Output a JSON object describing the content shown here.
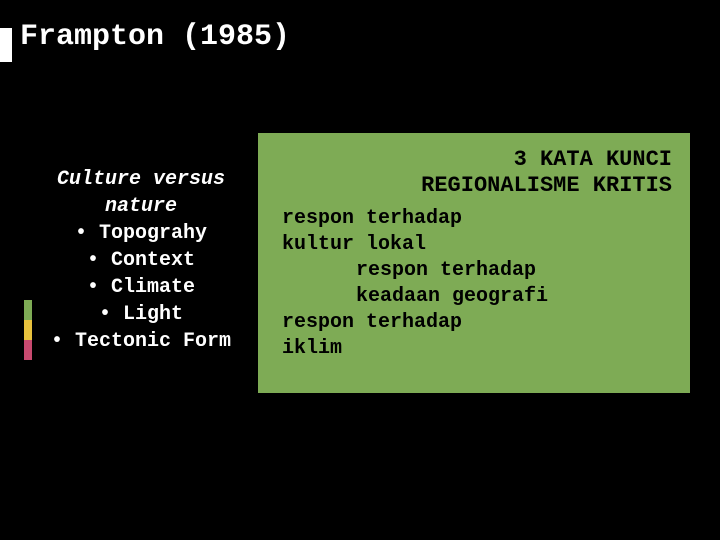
{
  "colors": {
    "background": "#000000",
    "title_text": "#ffffff",
    "left_text": "#ffffff",
    "box_bg": "#7eab55",
    "box_text": "#000000",
    "accent1": "#7eab55",
    "accent2": "#e8c23d",
    "accent3": "#c94a6f"
  },
  "title": "Frampton (1985)",
  "left": {
    "heading_line1": "Culture versus",
    "heading_line2": "nature",
    "items": [
      "• Topograhy",
      "• Context",
      "• Climate",
      "• Light",
      "• Tectonic Form"
    ]
  },
  "right": {
    "title_line1": "3 KATA KUNCI",
    "title_line2": "REGIONALISME KRITIS",
    "lines": [
      {
        "text": "respon terhadap",
        "indent": 1
      },
      {
        "text": "kultur lokal",
        "indent": 1
      },
      {
        "text": "respon terhadap",
        "indent": 2
      },
      {
        "text": "keadaan geografi",
        "indent": 2
      },
      {
        "text": "respon terhadap",
        "indent": 1
      },
      {
        "text": "iklim",
        "indent": 1
      }
    ]
  },
  "typography": {
    "title_fontsize": 30,
    "body_fontsize": 20,
    "right_title_fontsize": 22,
    "font_family": "Consolas, Courier New, monospace"
  }
}
